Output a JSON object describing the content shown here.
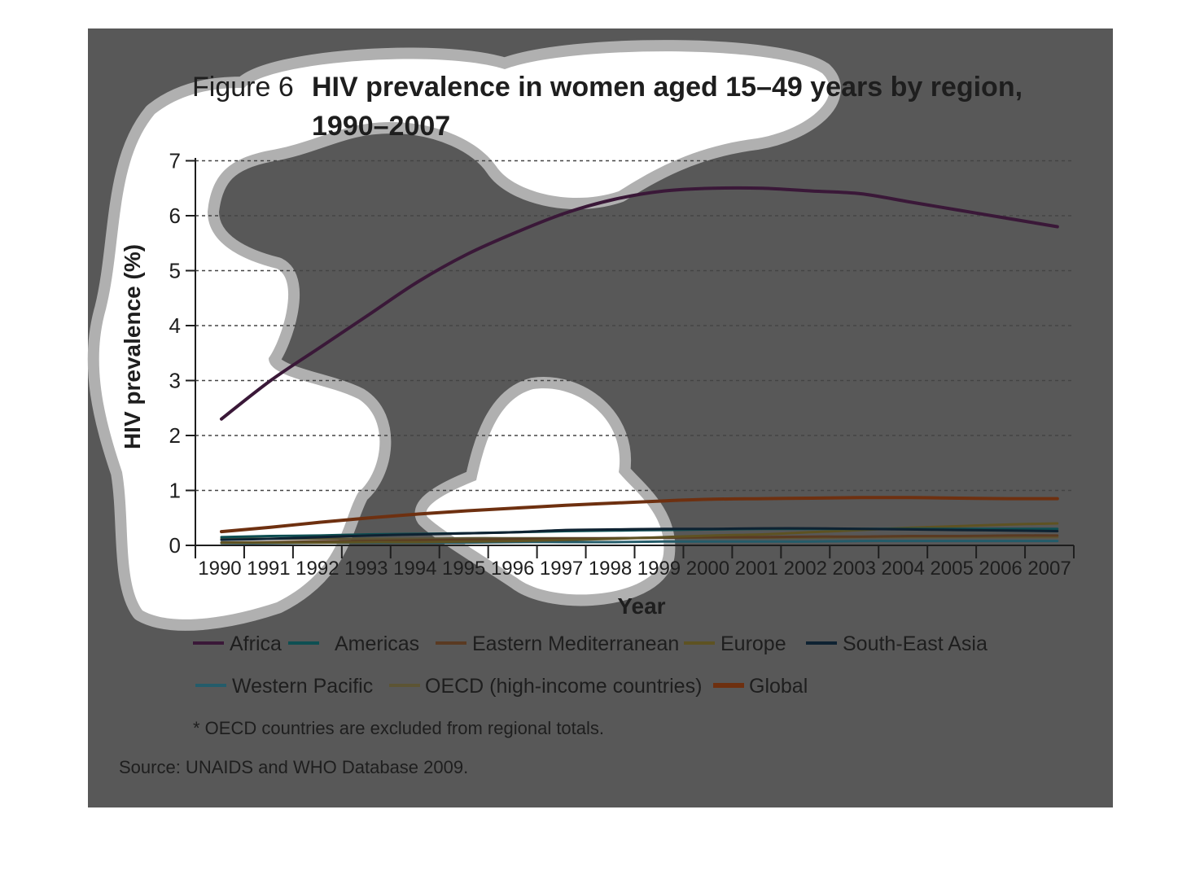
{
  "figure": {
    "label": "Figure 6",
    "title_line1": "HIV prevalence in women aged 15–49 years by region,",
    "title_line2": "1990–2007"
  },
  "note": "* OECD countries are excluded from regional totals.",
  "source": "Source: UNAIDS and WHO Database 2009.",
  "colors": {
    "panel_background": "#585858",
    "grid": "#444444",
    "text": "#1e1e1e",
    "blob_fill": "#ffffff",
    "blob_border": "#b0b0b0"
  },
  "chart_data": {
    "type": "line",
    "xlabel": "Year",
    "ylabel": "HIV prevalence (%)",
    "ylim": [
      0,
      7
    ],
    "yticks": [
      "0",
      "1",
      "2",
      "3",
      "4",
      "5",
      "6",
      "7"
    ],
    "categories": [
      "1990",
      "1991",
      "1992",
      "1993",
      "1994",
      "1995",
      "1996",
      "1997",
      "1998",
      "1999",
      "2000",
      "2001",
      "2002",
      "2003",
      "2004",
      "2005",
      "2006",
      "2007"
    ],
    "grid": "horizontal dashed",
    "legend_position": "bottom",
    "series": [
      {
        "name": "Africa",
        "color": "#3a1838",
        "highlight_color": "#b84cc4",
        "values": [
          2.3,
          3.0,
          3.6,
          4.2,
          4.8,
          5.3,
          5.7,
          6.05,
          6.3,
          6.45,
          6.5,
          6.5,
          6.45,
          6.4,
          6.25,
          6.1,
          5.95,
          5.8
        ]
      },
      {
        "name": "Americas",
        "color": "#0e4f52",
        "highlight_color": "#1aa6b0",
        "values": [
          0.15,
          0.17,
          0.18,
          0.2,
          0.21,
          0.22,
          0.24,
          0.26,
          0.27,
          0.28,
          0.29,
          0.3,
          0.3,
          0.3,
          0.3,
          0.3,
          0.3,
          0.3
        ]
      },
      {
        "name": "Eastern Mediterranean",
        "color": "#5a3a22",
        "highlight_color": "#c07c3c",
        "values": [
          0.05,
          0.06,
          0.07,
          0.08,
          0.09,
          0.1,
          0.11,
          0.12,
          0.13,
          0.14,
          0.15,
          0.15,
          0.16,
          0.16,
          0.17,
          0.17,
          0.18,
          0.18
        ]
      },
      {
        "name": "Europe",
        "color": "#5e5222",
        "highlight_color": "#e8dc50",
        "values": [
          0.05,
          0.05,
          0.05,
          0.06,
          0.06,
          0.07,
          0.08,
          0.1,
          0.12,
          0.15,
          0.18,
          0.2,
          0.24,
          0.28,
          0.32,
          0.35,
          0.38,
          0.4
        ]
      },
      {
        "name": "South-East Asia",
        "color": "#0e2232",
        "highlight_color": "#1e8ec4",
        "values": [
          0.1,
          0.12,
          0.15,
          0.18,
          0.2,
          0.22,
          0.24,
          0.28,
          0.29,
          0.3,
          0.3,
          0.31,
          0.31,
          0.3,
          0.29,
          0.28,
          0.27,
          0.26
        ]
      },
      {
        "name": "Western Pacific",
        "color": "#245c6a",
        "highlight_color": "#62d0ea",
        "values": [
          0.04,
          0.04,
          0.05,
          0.05,
          0.05,
          0.05,
          0.06,
          0.06,
          0.06,
          0.07,
          0.07,
          0.07,
          0.07,
          0.08,
          0.08,
          0.08,
          0.08,
          0.08
        ]
      },
      {
        "name": "OECD (high-income countries)",
        "color": "#5c5434",
        "highlight_color": "#dcc868",
        "values": [
          0.12,
          0.12,
          0.12,
          0.12,
          0.12,
          0.13,
          0.13,
          0.13,
          0.13,
          0.14,
          0.14,
          0.14,
          0.14,
          0.15,
          0.15,
          0.15,
          0.15,
          0.15
        ]
      },
      {
        "name": "Global",
        "color": "#6e3010",
        "highlight_color": "#f4a460",
        "values": [
          0.25,
          0.33,
          0.42,
          0.5,
          0.57,
          0.63,
          0.68,
          0.73,
          0.77,
          0.81,
          0.84,
          0.85,
          0.86,
          0.87,
          0.87,
          0.86,
          0.85,
          0.85
        ]
      }
    ]
  }
}
